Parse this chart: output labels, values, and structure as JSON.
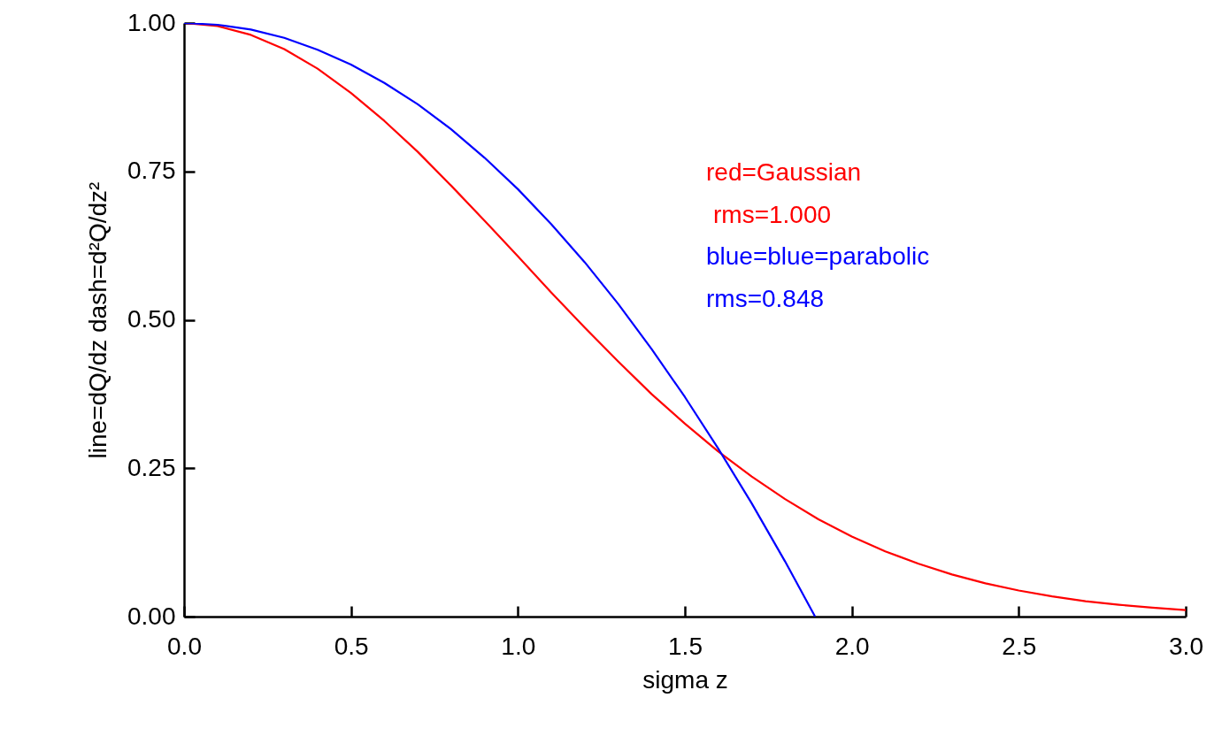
{
  "chart_data": {
    "type": "line",
    "xlabel": "sigma z",
    "ylabel": "line=dQ/dz    dash=d²Q/dz²",
    "annotations": [
      "red=Gaussian",
      " rms=1.000",
      "blue=blue=parabolic",
      "rms=0.848"
    ],
    "xlim": [
      0,
      3
    ],
    "ylim": [
      0,
      1
    ],
    "xticks": [
      {
        "value": 0,
        "label": "0.0"
      },
      0.5,
      {
        "value": 1,
        "label": "1.0"
      },
      1.5,
      {
        "value": 2,
        "label": "2.0"
      },
      2.5,
      {
        "value": 3,
        "label": "3.0"
      }
    ],
    "yticks": [
      {
        "value": 0,
        "label": "0.00"
      },
      0.25,
      {
        "value": 0.5,
        "label": "0.50"
      },
      0.75,
      {
        "value": 1,
        "label": "1.00"
      }
    ],
    "series": [
      {
        "color": "#ff0000",
        "x": [
          0,
          0.1,
          0.2,
          0.3,
          0.4,
          0.5,
          0.6,
          0.7,
          0.8,
          0.9,
          1.0,
          1.1,
          1.2,
          1.3,
          1.4,
          1.5,
          1.6,
          1.7,
          1.8,
          1.9,
          2.0,
          2.1,
          2.2,
          2.3,
          2.4,
          2.5,
          2.6,
          2.7,
          2.8,
          2.9,
          3.0
        ],
        "values": [
          1,
          0.995,
          0.98,
          0.956,
          0.923,
          0.882,
          0.835,
          0.783,
          0.726,
          0.667,
          0.607,
          0.546,
          0.487,
          0.43,
          0.375,
          0.325,
          0.278,
          0.236,
          0.198,
          0.164,
          0.135,
          0.11,
          0.089,
          0.071,
          0.056,
          0.044,
          0.034,
          0.026,
          0.02,
          0.015,
          0.011
        ]
      },
      {
        "color": "#0000ff",
        "x": [
          0,
          0.1,
          0.2,
          0.3,
          0.4,
          0.5,
          0.6,
          0.7,
          0.8,
          0.9,
          1.0,
          1.1,
          1.2,
          1.3,
          1.4,
          1.5,
          1.6,
          1.7,
          1.8,
          1.89
        ],
        "values": [
          1,
          0.997,
          0.989,
          0.975,
          0.955,
          0.93,
          0.899,
          0.863,
          0.821,
          0.773,
          0.72,
          0.661,
          0.597,
          0.527,
          0.451,
          0.37,
          0.283,
          0.191,
          0.093,
          0
        ]
      }
    ],
    "marker": "none",
    "line_style": "solid"
  }
}
